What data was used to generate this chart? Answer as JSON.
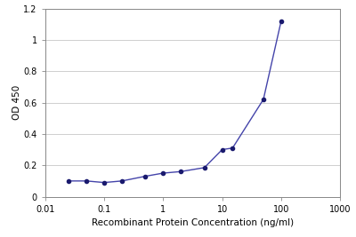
{
  "x": [
    0.025,
    0.05,
    0.1,
    0.2,
    0.5,
    1.0,
    2.0,
    5.0,
    10.0,
    15.0,
    50.0,
    100.0
  ],
  "y": [
    0.1,
    0.1,
    0.09,
    0.1,
    0.13,
    0.15,
    0.16,
    0.185,
    0.3,
    0.31,
    0.62,
    1.12
  ],
  "line_color": "#4444aa",
  "marker_color": "#1a1a6e",
  "marker_size": 3,
  "line_width": 1.0,
  "xlabel": "Recombinant Protein Concentration (ng/ml)",
  "ylabel": "OD 450",
  "xlim_log": [
    0.01,
    1000
  ],
  "ylim": [
    0,
    1.2
  ],
  "yticks": [
    0,
    0.2,
    0.4,
    0.6,
    0.8,
    1.0,
    1.2
  ],
  "ytick_labels": [
    "0",
    "0 2",
    "0 4",
    "0 6",
    "0 8",
    "1",
    "1 2"
  ],
  "ytick_labels_real": [
    "0",
    "0.2",
    "0.4",
    "0.6",
    "0.8",
    "1",
    "1.2"
  ],
  "xticks": [
    0.01,
    0.1,
    1,
    10,
    100,
    1000
  ],
  "xtick_labels": [
    "0.01",
    "0.1",
    "1",
    "10",
    "100",
    "1000"
  ],
  "background_color": "#ffffff",
  "grid_color": "#c8c8c8",
  "xlabel_fontsize": 7.5,
  "ylabel_fontsize": 7.5,
  "tick_fontsize": 7
}
